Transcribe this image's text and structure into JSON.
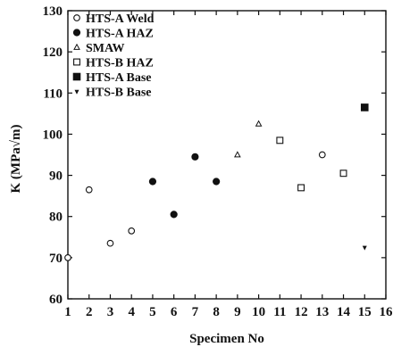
{
  "chart_data": {
    "type": "scatter",
    "xlabel": "Specimen No",
    "ylabel": "K (MPa√m)",
    "xlim": [
      1,
      16
    ],
    "ylim": [
      60,
      130
    ],
    "x_ticks": [
      "1",
      "2",
      "3",
      "4",
      "5",
      "6",
      "7",
      "8",
      "9",
      "10",
      "11",
      "12",
      "13",
      "14",
      "15",
      "16"
    ],
    "y_ticks": [
      "60",
      "70",
      "80",
      "90",
      "100",
      "110",
      "120",
      "130"
    ],
    "legend_position": "top-left",
    "grid": false,
    "series": [
      {
        "name": "HTS-A Weld",
        "marker": "open-circle",
        "points": [
          [
            1,
            70
          ],
          [
            2,
            86.5
          ],
          [
            3,
            73.5
          ],
          [
            4,
            76.5
          ],
          [
            13,
            95
          ]
        ]
      },
      {
        "name": "HTS-A HAZ",
        "marker": "filled-circle",
        "points": [
          [
            5,
            88.5
          ],
          [
            6,
            80.5
          ],
          [
            7,
            94.5
          ],
          [
            8,
            88.5
          ]
        ]
      },
      {
        "name": "SMAW",
        "marker": "open-triangle",
        "points": [
          [
            9,
            95
          ],
          [
            10,
            102.5
          ]
        ]
      },
      {
        "name": "HTS-B HAZ",
        "marker": "open-square",
        "points": [
          [
            11,
            98.5
          ],
          [
            12,
            87
          ],
          [
            14,
            90.5
          ]
        ]
      },
      {
        "name": "HTS-A Base",
        "marker": "filled-square",
        "points": [
          [
            15,
            106.5
          ]
        ]
      },
      {
        "name": "HTS-B Base",
        "marker": "small-triangle",
        "points": [
          [
            15,
            72.5
          ]
        ]
      }
    ]
  }
}
